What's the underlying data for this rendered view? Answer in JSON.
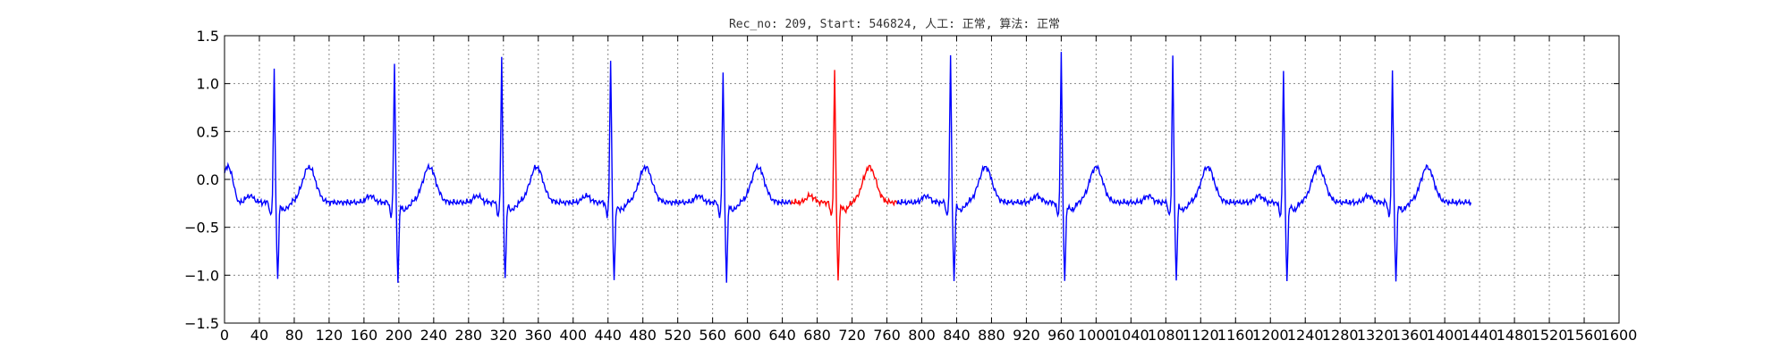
{
  "chart_data": {
    "type": "line",
    "title": "Rec_no: 209, Start: 546824, 人工: 正常, 算法: 正常",
    "xlabel": "",
    "ylabel": "",
    "xlim": [
      0,
      1600
    ],
    "ylim": [
      -1.5,
      1.5
    ],
    "grid": true,
    "y_ticks": [
      -1.5,
      -1.0,
      -0.5,
      0.0,
      0.5,
      1.0,
      1.5
    ],
    "y_tick_labels": [
      "−1.5",
      "−1.0",
      "−0.5",
      "0.0",
      "0.5",
      "1.0",
      "1.5"
    ],
    "x_ticks": [
      0,
      40,
      80,
      120,
      160,
      200,
      240,
      280,
      320,
      360,
      400,
      440,
      480,
      520,
      560,
      600,
      640,
      680,
      720,
      760,
      800,
      840,
      880,
      920,
      960,
      1000,
      1040,
      1080,
      1120,
      1160,
      1200,
      1240,
      1280,
      1320,
      1360,
      1400,
      1440,
      1480,
      1520,
      1560,
      1600
    ],
    "colors": {
      "normal": "#0000ff",
      "highlight": "#ff0000",
      "grid": "#888888"
    },
    "r_peaks": [
      {
        "x": 57,
        "r": 1.08
      },
      {
        "x": 195,
        "r": 1.17
      },
      {
        "x": 318,
        "r": 1.2
      },
      {
        "x": 443,
        "r": 1.21
      },
      {
        "x": 572,
        "r": 1.08
      },
      {
        "x": 700,
        "r": 1.08
      },
      {
        "x": 833,
        "r": 1.23
      },
      {
        "x": 960,
        "r": 1.29
      },
      {
        "x": 1088,
        "r": 1.23
      },
      {
        "x": 1215,
        "r": 1.08
      },
      {
        "x": 1340,
        "r": 1.08
      }
    ],
    "signal_end": 1430,
    "highlight_range": [
      650,
      772
    ]
  }
}
